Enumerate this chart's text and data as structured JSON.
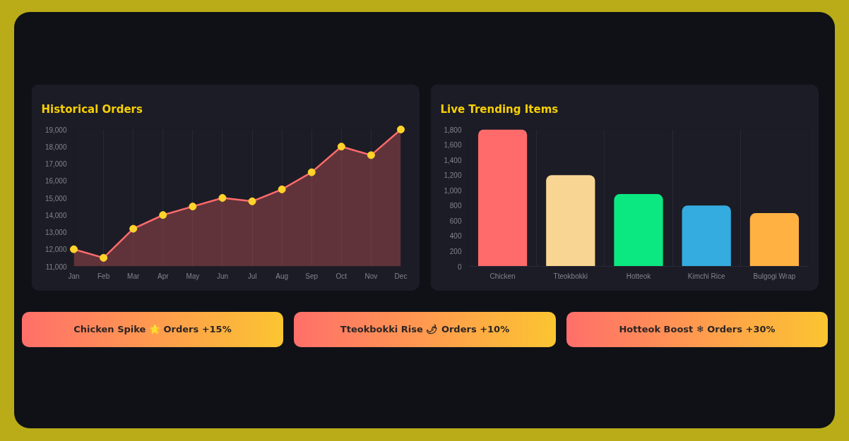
{
  "chart_data": [
    {
      "type": "area",
      "title": "Historical Orders",
      "categories": [
        "Jan",
        "Feb",
        "Mar",
        "Apr",
        "May",
        "Jun",
        "Jul",
        "Aug",
        "Sep",
        "Oct",
        "Nov",
        "Dec"
      ],
      "series": [
        {
          "color": "#ff6b6b",
          "colors": [
            "#ffd32a",
            "#ffd32a",
            "#ffd32a",
            "#ffd32a",
            "#ffd32a",
            "#ffd32a",
            "#ffd32a",
            "#ffd32a",
            "#ffd32a",
            "#ffd32a",
            "#ffd32a",
            "#ffd32a"
          ],
          "values": [
            12000,
            11500,
            13200,
            14000,
            14500,
            15000,
            14800,
            15500,
            16500,
            18000,
            17500,
            19000
          ]
        }
      ],
      "ylim": [
        11000,
        19000
      ],
      "yticks": [
        {
          "value": 11000,
          "label": "11,000"
        },
        {
          "value": 12000,
          "label": "12,000"
        },
        {
          "value": 13000,
          "label": "13,000"
        },
        {
          "value": 14000,
          "label": "14,000"
        },
        {
          "value": 15000,
          "label": "15,000"
        },
        {
          "value": 16000,
          "label": "16,000"
        },
        {
          "value": 17000,
          "label": "17,000"
        },
        {
          "value": 18000,
          "label": "18,000"
        },
        {
          "value": 19000,
          "label": "19,000"
        }
      ],
      "grid": "x",
      "marker": "circle"
    },
    {
      "type": "bar",
      "title": "Live Trending Items",
      "categories": [
        "Chicken",
        "Tteokbokki",
        "Hotteok",
        "Kimchi Rice",
        "Bulgogi Wrap"
      ],
      "values": [
        1800,
        1200,
        950,
        800,
        700
      ],
      "colors": [
        "#ff6b6b",
        "#f8d593",
        "#0be881",
        "#34ace0",
        "#ffb142"
      ],
      "ylim": [
        0,
        1800
      ],
      "yticks": [
        0,
        200,
        400,
        600,
        800,
        {
          "value": 1000,
          "label": "1,000"
        },
        {
          "value": 1200,
          "label": "1,200"
        },
        {
          "value": 1400,
          "label": "1,400"
        },
        {
          "value": 1600,
          "label": "1,600"
        },
        {
          "value": 1800,
          "label": "1,800"
        }
      ],
      "grid": "x"
    },
    {
      "type": "other",
      "annotations": [
        "Chicken Spike 🌟 Orders +15%",
        "Tteokbokki Rise 🌶 Orders +10%",
        "Hotteok Boost ❄ Orders +30%"
      ]
    }
  ]
}
